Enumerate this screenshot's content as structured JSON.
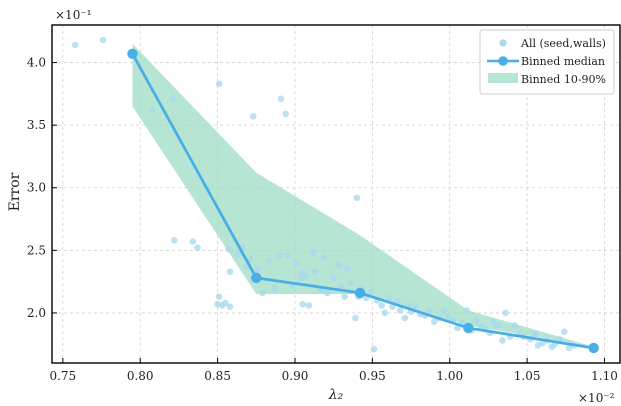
{
  "chart_data": {
    "type": "scatter",
    "xlabel": "λ₂",
    "ylabel": "Error",
    "x_multiplier_label": "×10⁻²",
    "y_multiplier_label": "×10⁻¹",
    "xlim": [
      0.743,
      1.11
    ],
    "ylim": [
      1.6,
      4.3
    ],
    "x_ticks": [
      0.75,
      0.8,
      0.85,
      0.9,
      0.95,
      1.0,
      1.05,
      1.1
    ],
    "x_tick_labels": [
      "0.75",
      "0.80",
      "0.85",
      "0.90",
      "0.95",
      "1.00",
      "1.05",
      "1.10"
    ],
    "y_ticks": [
      2.0,
      2.5,
      3.0,
      3.5,
      4.0
    ],
    "y_tick_labels": [
      "2.0",
      "2.5",
      "3.0",
      "3.5",
      "4.0"
    ],
    "grid": true,
    "legend_position": "top-right",
    "colors": {
      "scatter": "#a6d8ee",
      "median": "#4aaee6",
      "band": "#9fdcc6"
    },
    "series": [
      {
        "name": "All (seed,walls)",
        "kind": "scatter",
        "points": [
          [
            0.758,
            4.14
          ],
          [
            0.776,
            4.18
          ],
          [
            0.808,
            3.62
          ],
          [
            0.821,
            3.71
          ],
          [
            0.822,
            2.58
          ],
          [
            0.834,
            2.57
          ],
          [
            0.837,
            2.52
          ],
          [
            0.85,
            2.07
          ],
          [
            0.851,
            3.83
          ],
          [
            0.851,
            2.13
          ],
          [
            0.853,
            2.06
          ],
          [
            0.855,
            2.08
          ],
          [
            0.857,
            2.51
          ],
          [
            0.858,
            2.05
          ],
          [
            0.858,
            2.33
          ],
          [
            0.863,
            2.47
          ],
          [
            0.866,
            2.52
          ],
          [
            0.869,
            2.37
          ],
          [
            0.871,
            2.43
          ],
          [
            0.873,
            3.57
          ],
          [
            0.875,
            2.28
          ],
          [
            0.876,
            2.35
          ],
          [
            0.879,
            2.16
          ],
          [
            0.883,
            2.41
          ],
          [
            0.887,
            2.2
          ],
          [
            0.89,
            2.46
          ],
          [
            0.891,
            3.71
          ],
          [
            0.894,
            3.59
          ],
          [
            0.895,
            2.46
          ],
          [
            0.898,
            2.22
          ],
          [
            0.901,
            2.4
          ],
          [
            0.904,
            2.28
          ],
          [
            0.905,
            2.32
          ],
          [
            0.905,
            2.07
          ],
          [
            0.907,
            2.29
          ],
          [
            0.909,
            2.06
          ],
          [
            0.912,
            2.48
          ],
          [
            0.913,
            2.33
          ],
          [
            0.917,
            2.18
          ],
          [
            0.919,
            2.44
          ],
          [
            0.921,
            2.16
          ],
          [
            0.925,
            2.28
          ],
          [
            0.928,
            2.38
          ],
          [
            0.93,
            2.21
          ],
          [
            0.932,
            2.13
          ],
          [
            0.934,
            2.35
          ],
          [
            0.936,
            2.24
          ],
          [
            0.939,
            1.96
          ],
          [
            0.94,
            2.92
          ],
          [
            0.941,
            2.13
          ],
          [
            0.943,
            2.2
          ],
          [
            0.946,
            2.12
          ],
          [
            0.949,
            2.17
          ],
          [
            0.951,
            1.71
          ],
          [
            0.953,
            2.1
          ],
          [
            0.956,
            2.06
          ],
          [
            0.958,
            2.0
          ],
          [
            0.961,
            2.12
          ],
          [
            0.963,
            2.05
          ],
          [
            0.966,
            2.09
          ],
          [
            0.968,
            2.02
          ],
          [
            0.971,
            1.96
          ],
          [
            0.973,
            2.06
          ],
          [
            0.975,
            2.01
          ],
          [
            0.978,
            2.05
          ],
          [
            0.981,
            1.99
          ],
          [
            0.984,
            1.98
          ],
          [
            0.987,
            2.02
          ],
          [
            0.99,
            1.93
          ],
          [
            0.993,
            1.96
          ],
          [
            0.996,
            2.02
          ],
          [
            0.999,
            1.97
          ],
          [
            1.002,
            1.94
          ],
          [
            1.005,
            1.88
          ],
          [
            1.008,
            1.92
          ],
          [
            1.011,
            2.02
          ],
          [
            1.014,
            1.86
          ],
          [
            1.017,
            1.94
          ],
          [
            1.02,
            1.89
          ],
          [
            1.023,
            1.87
          ],
          [
            1.026,
            1.84
          ],
          [
            1.028,
            1.93
          ],
          [
            1.031,
            1.9
          ],
          [
            1.034,
            1.78
          ],
          [
            1.036,
            2.0
          ],
          [
            1.039,
            1.81
          ],
          [
            1.042,
            1.9
          ],
          [
            1.045,
            1.84
          ],
          [
            1.048,
            1.81
          ],
          [
            1.052,
            1.79
          ],
          [
            1.055,
            1.83
          ],
          [
            1.057,
            1.74
          ],
          [
            1.06,
            1.76
          ],
          [
            1.063,
            1.78
          ],
          [
            1.066,
            1.73
          ],
          [
            1.068,
            1.75
          ],
          [
            1.071,
            1.79
          ],
          [
            1.074,
            1.85
          ],
          [
            1.077,
            1.72
          ],
          [
            1.08,
            1.74
          ]
        ]
      },
      {
        "name": "Binned median",
        "kind": "line",
        "x": [
          0.795,
          0.875,
          0.942,
          1.012,
          1.093
        ],
        "y": [
          4.07,
          2.28,
          2.16,
          1.88,
          1.72
        ]
      },
      {
        "name": "Binned 10-90%",
        "kind": "band",
        "x": [
          0.795,
          0.875,
          0.942,
          1.012,
          1.093
        ],
        "lower": [
          3.65,
          2.15,
          2.15,
          1.9,
          1.73
        ],
        "upper": [
          4.15,
          3.12,
          2.62,
          2.02,
          1.73
        ]
      }
    ]
  }
}
